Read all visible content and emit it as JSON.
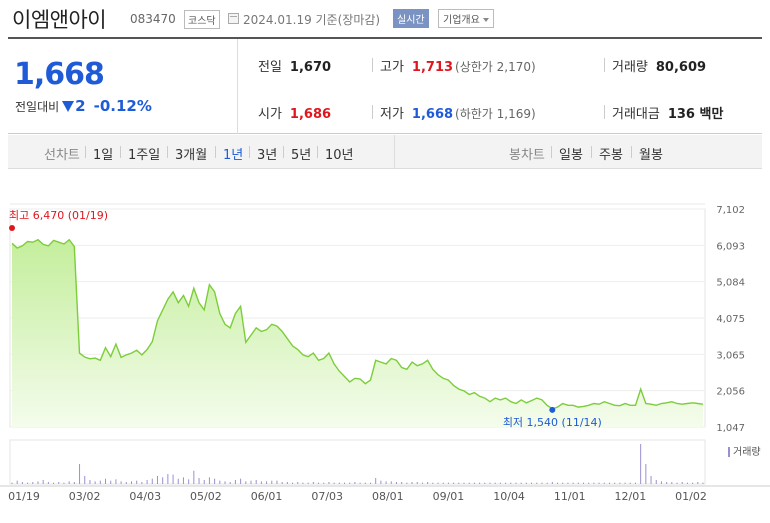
{
  "header": {
    "name": "이엠앤아이",
    "code": "083470",
    "market": "코스닥",
    "date_text": "2024.01.19 기준(장마감)",
    "realtime_label": "실시간",
    "company_label": "기업개요"
  },
  "summary": {
    "price": "1,668",
    "change_label": "전일대비",
    "change_value": "2",
    "change_pct": "-0.12%",
    "prev_close_label": "전일",
    "prev_close": "1,670",
    "high_label": "고가",
    "high": "1,713",
    "upper_limit": "(상한가 2,170)",
    "volume_label": "거래량",
    "volume": "80,609",
    "open_label": "시가",
    "open": "1,686",
    "low_label": "저가",
    "low": "1,668",
    "lower_limit": "(하한가 1,169)",
    "amount_label": "거래대금",
    "amount": "136 백만"
  },
  "tabs": {
    "line_label": "선차트",
    "line_items": [
      "1일",
      "1주일",
      "3개월",
      "1년",
      "3년",
      "5년",
      "10년"
    ],
    "active": "1년",
    "candle_label": "봉차트",
    "candle_items": [
      "일봉",
      "주봉",
      "월봉"
    ]
  },
  "colors": {
    "line": "#7ccd3a",
    "fill_top": "#c4ee9c",
    "fill_bottom": "#f4fcec",
    "volume": "#9b8fd2",
    "up": "#e0161e",
    "down": "#1f5bd6"
  },
  "chart_data": {
    "type": "area",
    "y_ticks": [
      "7,102",
      "6,093",
      "5,084",
      "4,075",
      "3,065",
      "2,056",
      "1,047"
    ],
    "ylim": [
      1047,
      7102
    ],
    "x_ticks": [
      "01/19",
      "03/02",
      "04/03",
      "05/02",
      "06/01",
      "07/03",
      "08/01",
      "09/01",
      "10/04",
      "11/01",
      "12/01",
      "01/02"
    ],
    "high_annotation": "최고 6,470 (01/19)",
    "low_annotation": "최저 1,540 (11/14)",
    "volume_label": "거래량",
    "price_series": [
      6150,
      6020,
      6080,
      6200,
      6180,
      6250,
      6120,
      6080,
      6230,
      6180,
      6130,
      6250,
      6060,
      3100,
      2990,
      2940,
      2960,
      2900,
      3250,
      3000,
      3350,
      2980,
      3050,
      3100,
      3180,
      3050,
      3200,
      3420,
      4000,
      4300,
      4600,
      4800,
      4500,
      4700,
      4400,
      4900,
      4500,
      4300,
      5000,
      4800,
      4200,
      3900,
      3800,
      4200,
      4400,
      3400,
      3600,
      3800,
      3700,
      3750,
      3900,
      3850,
      3700,
      3500,
      3300,
      3200,
      3050,
      3000,
      3100,
      2900,
      2950,
      3100,
      2800,
      2600,
      2450,
      2300,
      2400,
      2380,
      2250,
      2350,
      2900,
      2850,
      2800,
      2950,
      2900,
      2700,
      2650,
      2850,
      2750,
      2800,
      2900,
      2650,
      2500,
      2400,
      2350,
      2200,
      2100,
      2050,
      1950,
      2000,
      1900,
      1850,
      1750,
      1850,
      1800,
      1850,
      1750,
      1700,
      1800,
      1720,
      1780,
      1850,
      1800,
      1650,
      1550,
      1600,
      1700,
      1650,
      1650,
      1600,
      1620,
      1650,
      1700,
      1680,
      1750,
      1700,
      1650,
      1640,
      1700,
      1650,
      1650,
      2100,
      1700,
      1680,
      1650,
      1700,
      1720,
      1750,
      1700,
      1680,
      1700,
      1720,
      1700,
      1680
    ],
    "volume_series": [
      2,
      5,
      3,
      2,
      3,
      4,
      6,
      3,
      2,
      3,
      2,
      4,
      3,
      30,
      12,
      6,
      4,
      5,
      8,
      5,
      7,
      4,
      3,
      4,
      5,
      3,
      6,
      8,
      12,
      10,
      15,
      14,
      8,
      10,
      7,
      20,
      9,
      6,
      10,
      8,
      5,
      4,
      3,
      6,
      8,
      4,
      5,
      6,
      4,
      4,
      5,
      5,
      3,
      3,
      2,
      3,
      2,
      2,
      3,
      2,
      2,
      3,
      2,
      2,
      2,
      2,
      3,
      2,
      2,
      2,
      9,
      5,
      4,
      4,
      3,
      3,
      2,
      3,
      3,
      2,
      3,
      2,
      2,
      2,
      2,
      2,
      2,
      2,
      2,
      2,
      2,
      2,
      2,
      2,
      2,
      2,
      2,
      2,
      2,
      2,
      2,
      2,
      2,
      2,
      3,
      2,
      2,
      2,
      2,
      2,
      2,
      2,
      2,
      2,
      2,
      2,
      2,
      2,
      2,
      2,
      2,
      60,
      30,
      12,
      6,
      4,
      3,
      3,
      2,
      3,
      2,
      2,
      3,
      2
    ]
  }
}
